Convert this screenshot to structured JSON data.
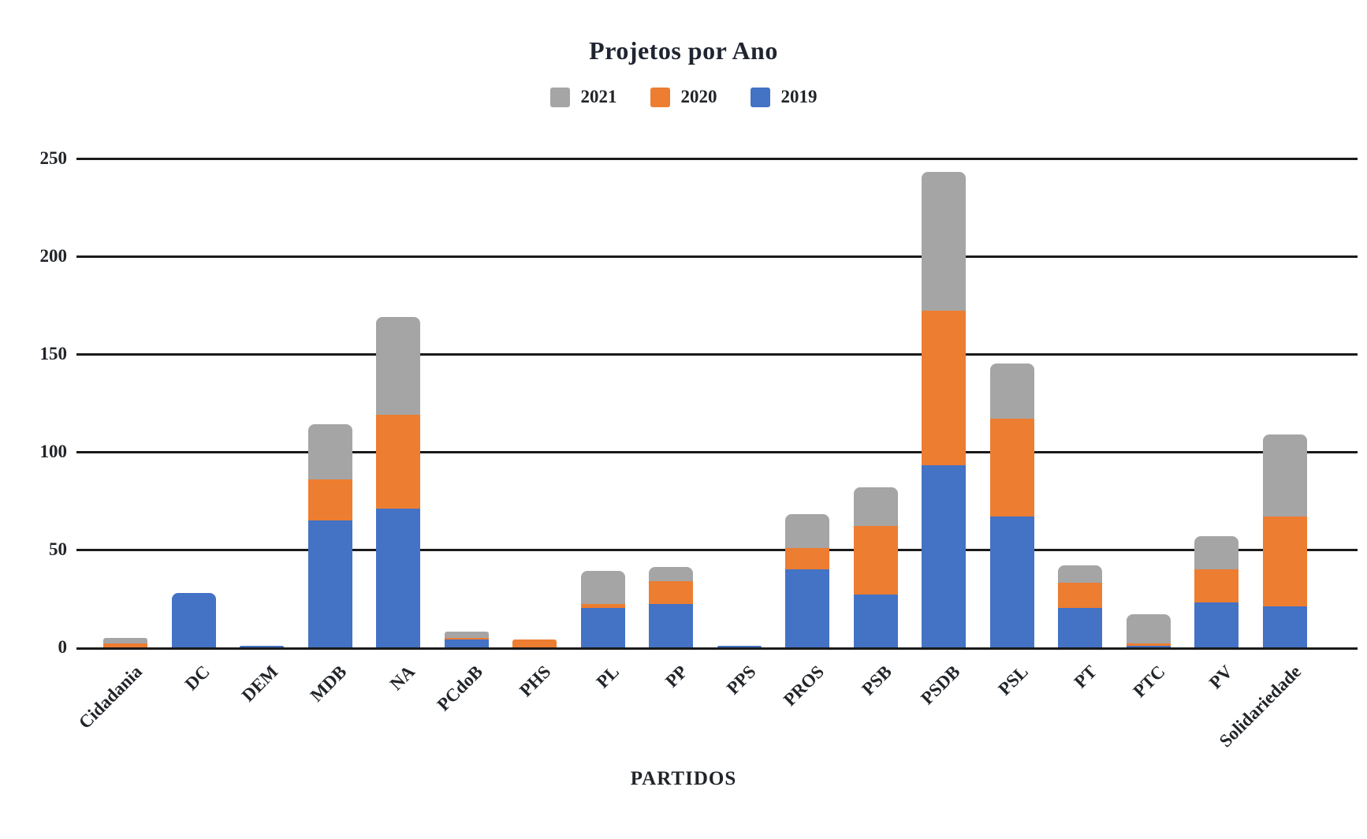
{
  "title": "Projetos por Ano",
  "legend": {
    "items": [
      {
        "label": "2021",
        "color": "#A5A5A5"
      },
      {
        "label": "2020",
        "color": "#ED7D31"
      },
      {
        "label": "2019",
        "color": "#4472C4"
      }
    ]
  },
  "axis": {
    "x_title": "PARTIDOS",
    "y_ticks": [
      250,
      200,
      150,
      100,
      50,
      0
    ]
  },
  "colors": {
    "grid": "#1a1a1a",
    "text": "#212529",
    "background": "#ffffff"
  },
  "chart_data": {
    "type": "bar",
    "stacked": true,
    "title": "Projetos por Ano",
    "xlabel": "PARTIDOS",
    "ylabel": "",
    "ylim": [
      0,
      250
    ],
    "y_tick_step": 50,
    "grid": true,
    "legend_position": "top",
    "categories": [
      "Cidadania",
      "DC",
      "DEM",
      "MDB",
      "NA",
      "PCdoB",
      "PHS",
      "PL",
      "PP",
      "PPS",
      "PROS",
      "PSB",
      "PSDB",
      "PSL",
      "PT",
      "PTC",
      "PV",
      "Solidariedade"
    ],
    "series": [
      {
        "name": "2019",
        "color": "#4472C4",
        "values": [
          0,
          28,
          1,
          65,
          71,
          4,
          0,
          20,
          22,
          1,
          40,
          27,
          93,
          67,
          20,
          1,
          23,
          21
        ]
      },
      {
        "name": "2020",
        "color": "#ED7D31",
        "values": [
          2,
          0,
          0,
          21,
          48,
          1,
          4,
          2,
          12,
          0,
          11,
          35,
          79,
          50,
          13,
          1,
          17,
          46
        ]
      },
      {
        "name": "2021",
        "color": "#A5A5A5",
        "values": [
          3,
          0,
          0,
          28,
          50,
          3,
          0,
          17,
          7,
          0,
          17,
          20,
          71,
          28,
          9,
          15,
          17,
          42
        ]
      }
    ],
    "totals": [
      5,
      28,
      1,
      114,
      169,
      8,
      4,
      39,
      41,
      1,
      68,
      82,
      243,
      145,
      42,
      17,
      57,
      109
    ]
  }
}
